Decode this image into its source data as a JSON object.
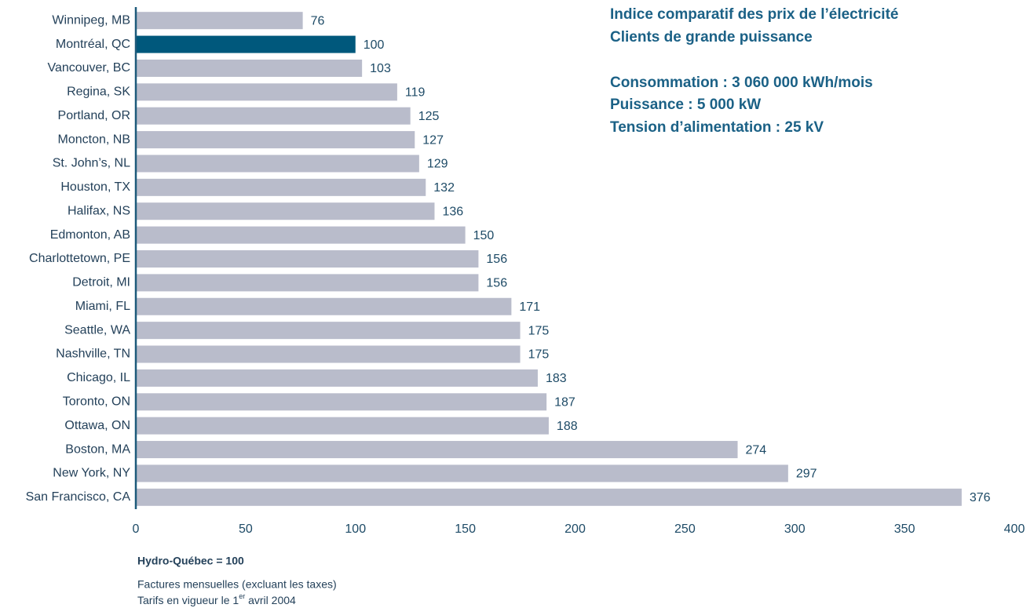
{
  "chart_data": {
    "type": "barh",
    "title": [
      "Indice comparatif des prix de l’électricité",
      "Clients de grande puissance"
    ],
    "subtitle": [
      "Consommation : 3 060 000 kWh/mois",
      "Puissance : 5 000 kW",
      "Tension d’alimentation : 25 kV"
    ],
    "categories": [
      "Winnipeg, MB",
      "Montréal, QC",
      "Vancouver, BC",
      "Regina, SK",
      "Portland, OR",
      "Moncton, NB",
      "St. John’s, NL",
      "Houston, TX",
      "Halifax, NS",
      "Edmonton, AB",
      "Charlottetown, PE",
      "Detroit, MI",
      "Miami, FL",
      "Seattle, WA",
      "Nashville, TN",
      "Chicago, IL",
      "Toronto, ON",
      "Ottawa, ON",
      "Boston, MA",
      "New York, NY",
      "San Francisco, CA"
    ],
    "values": [
      76,
      100,
      103,
      119,
      125,
      127,
      129,
      132,
      136,
      150,
      156,
      156,
      171,
      175,
      175,
      183,
      187,
      188,
      274,
      297,
      376
    ],
    "colors": [
      "#b9bccb",
      "#00587c",
      "#b9bccb",
      "#b9bccb",
      "#b9bccb",
      "#b9bccb",
      "#b9bccb",
      "#b9bccb",
      "#b9bccb",
      "#b9bccb",
      "#b9bccb",
      "#b9bccb",
      "#b9bccb",
      "#b9bccb",
      "#b9bccb",
      "#b9bccb",
      "#b9bccb",
      "#b9bccb",
      "#b9bccb",
      "#b9bccb",
      "#b9bccb"
    ],
    "xlim": [
      0,
      400
    ],
    "xticks": [
      0,
      50,
      100,
      150,
      200,
      250,
      300,
      350,
      400
    ],
    "grid": false,
    "annotation": "Hydro-Québec = 100",
    "notes": [
      "Factures mensuelles (excluant les taxes)",
      {
        "parts": [
          "Tarifs en vigueur le 1",
          "er",
          " avril 2004"
        ]
      }
    ]
  }
}
